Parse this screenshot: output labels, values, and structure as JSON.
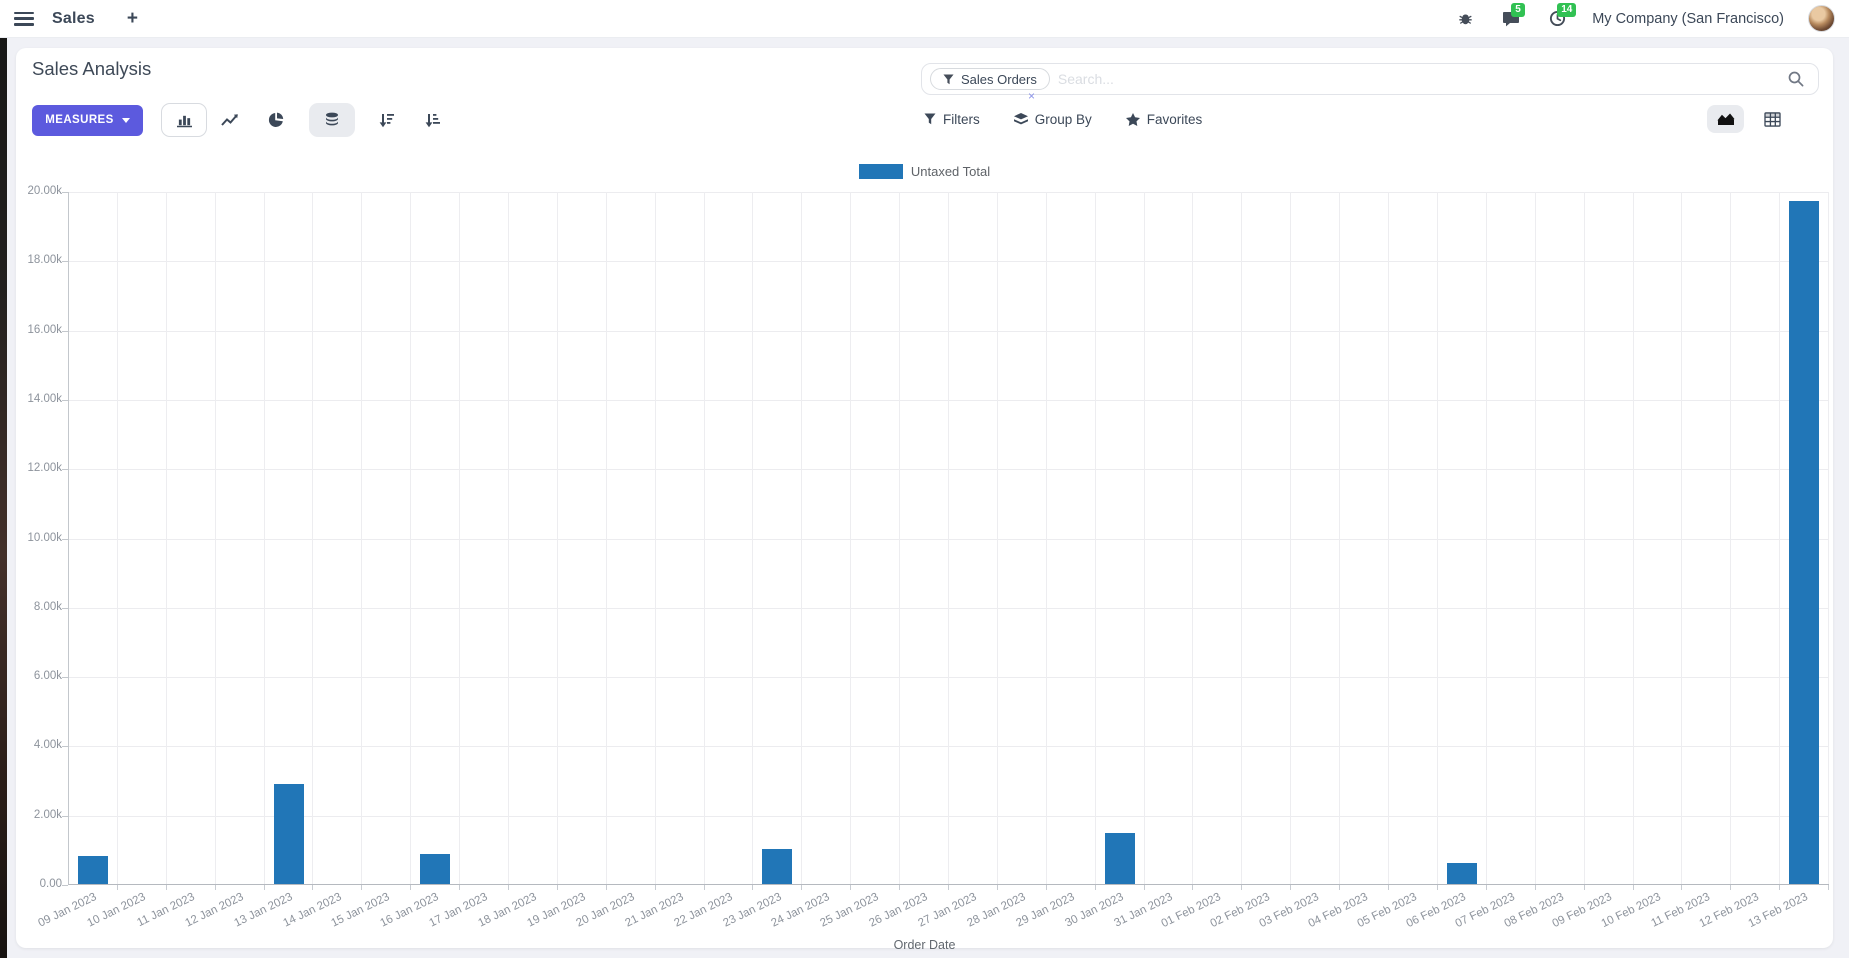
{
  "navbar": {
    "app_name": "Sales",
    "plus_label": "+",
    "messages_badge": "5",
    "activities_badge": "14",
    "company": "My Company (San Francisco)"
  },
  "control_panel": {
    "title": "Sales Analysis",
    "measures_label": "MEASURES",
    "search": {
      "facet_label": "Sales Orders",
      "facet_remove": "×",
      "placeholder": "Search..."
    },
    "filters_label": "Filters",
    "group_by_label": "Group By",
    "favorites_label": "Favorites"
  },
  "chart_data": {
    "type": "bar",
    "title": "",
    "legend": [
      "Untaxed Total"
    ],
    "legend_position": "top",
    "xlabel": "Order Date",
    "ylabel": "",
    "ylim": [
      0,
      20000
    ],
    "ytick_step": 2000,
    "ytick_labels": [
      "0.00",
      "2.00k",
      "4.00k",
      "6.00k",
      "8.00k",
      "10.00k",
      "12.00k",
      "14.00k",
      "16.00k",
      "18.00k",
      "20.00k"
    ],
    "grid": true,
    "bar_color": "#2176b7",
    "categories": [
      "09 Jan 2023",
      "10 Jan 2023",
      "11 Jan 2023",
      "12 Jan 2023",
      "13 Jan 2023",
      "14 Jan 2023",
      "15 Jan 2023",
      "16 Jan 2023",
      "17 Jan 2023",
      "18 Jan 2023",
      "19 Jan 2023",
      "20 Jan 2023",
      "21 Jan 2023",
      "22 Jan 2023",
      "23 Jan 2023",
      "24 Jan 2023",
      "25 Jan 2023",
      "26 Jan 2023",
      "27 Jan 2023",
      "28 Jan 2023",
      "29 Jan 2023",
      "30 Jan 2023",
      "31 Jan 2023",
      "01 Feb 2023",
      "02 Feb 2023",
      "03 Feb 2023",
      "04 Feb 2023",
      "05 Feb 2023",
      "06 Feb 2023",
      "07 Feb 2023",
      "08 Feb 2023",
      "09 Feb 2023",
      "10 Feb 2023",
      "11 Feb 2023",
      "12 Feb 2023",
      "13 Feb 2023"
    ],
    "values": [
      800,
      0,
      0,
      0,
      2890,
      0,
      0,
      870,
      0,
      0,
      0,
      0,
      0,
      0,
      1010,
      0,
      0,
      0,
      0,
      0,
      0,
      1480,
      0,
      0,
      0,
      0,
      0,
      0,
      600,
      0,
      0,
      0,
      0,
      0,
      0,
      19700
    ]
  },
  "colors": {
    "primary_button": "#5c5ade",
    "badge_green": "#31c153",
    "bar_blue": "#2176b7"
  }
}
